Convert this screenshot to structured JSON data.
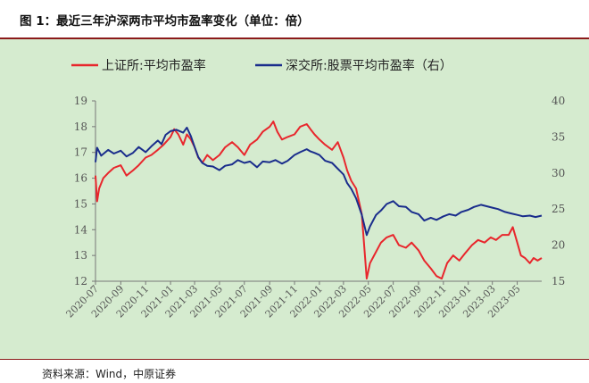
{
  "title": "图 1：最近三年沪深两市平均市盈率变化（单位：倍）",
  "source": "资料来源：Wind，中原证券",
  "chart_data": {
    "type": "line",
    "legend_position": "top",
    "grid": false,
    "x_ticks": [
      "2020-07",
      "2020-09",
      "2020-11",
      "2021-01",
      "2021-03",
      "2021-05",
      "2021-07",
      "2021-09",
      "2021-11",
      "2022-01",
      "2022-03",
      "2022-05",
      "2022-07",
      "2022-09",
      "2022-11",
      "2023-01",
      "2023-03",
      "2023-05"
    ],
    "x_range": [
      "2020-07-01",
      "2023-06-30"
    ],
    "y_left": {
      "min": 12,
      "max": 19,
      "ticks": [
        "12",
        "13",
        "14",
        "15",
        "16",
        "17",
        "18",
        "19"
      ]
    },
    "y_right": {
      "min": 15,
      "max": 40,
      "ticks": [
        "15",
        "20",
        "25",
        "30",
        "35",
        "40"
      ]
    },
    "series": [
      {
        "name": "上证所:平均市盈率",
        "axis": "left",
        "color": "#e8262c",
        "points": [
          [
            "2020-07-01",
            16.1
          ],
          [
            "2020-07-05",
            15.1
          ],
          [
            "2020-07-10",
            15.6
          ],
          [
            "2020-07-20",
            16.0
          ],
          [
            "2020-08-01",
            16.2
          ],
          [
            "2020-08-15",
            16.4
          ],
          [
            "2020-09-01",
            16.5
          ],
          [
            "2020-09-15",
            16.1
          ],
          [
            "2020-10-01",
            16.3
          ],
          [
            "2020-10-15",
            16.5
          ],
          [
            "2020-11-01",
            16.8
          ],
          [
            "2020-11-15",
            16.9
          ],
          [
            "2020-12-01",
            17.1
          ],
          [
            "2020-12-15",
            17.3
          ],
          [
            "2021-01-01",
            17.6
          ],
          [
            "2021-01-10",
            17.9
          ],
          [
            "2021-01-20",
            17.7
          ],
          [
            "2021-02-01",
            17.3
          ],
          [
            "2021-02-10",
            17.7
          ],
          [
            "2021-02-20",
            17.5
          ],
          [
            "2021-03-01",
            17.2
          ],
          [
            "2021-03-10",
            16.8
          ],
          [
            "2021-03-20",
            16.6
          ],
          [
            "2021-04-01",
            16.9
          ],
          [
            "2021-04-15",
            16.7
          ],
          [
            "2021-05-01",
            16.9
          ],
          [
            "2021-05-15",
            17.2
          ],
          [
            "2021-06-01",
            17.4
          ],
          [
            "2021-06-15",
            17.2
          ],
          [
            "2021-07-01",
            16.9
          ],
          [
            "2021-07-15",
            17.3
          ],
          [
            "2021-08-01",
            17.5
          ],
          [
            "2021-08-15",
            17.8
          ],
          [
            "2021-09-01",
            18.0
          ],
          [
            "2021-09-10",
            18.2
          ],
          [
            "2021-09-20",
            17.8
          ],
          [
            "2021-10-01",
            17.5
          ],
          [
            "2021-10-15",
            17.6
          ],
          [
            "2021-11-01",
            17.7
          ],
          [
            "2021-11-15",
            18.0
          ],
          [
            "2021-12-01",
            18.1
          ],
          [
            "2021-12-10",
            17.9
          ],
          [
            "2021-12-20",
            17.7
          ],
          [
            "2022-01-01",
            17.5
          ],
          [
            "2022-01-15",
            17.3
          ],
          [
            "2022-02-01",
            17.1
          ],
          [
            "2022-02-15",
            17.4
          ],
          [
            "2022-03-01",
            16.8
          ],
          [
            "2022-03-10",
            16.3
          ],
          [
            "2022-03-20",
            15.9
          ],
          [
            "2022-04-01",
            15.6
          ],
          [
            "2022-04-15",
            14.6
          ],
          [
            "2022-04-27",
            12.1
          ],
          [
            "2022-05-05",
            12.7
          ],
          [
            "2022-05-15",
            13.0
          ],
          [
            "2022-06-01",
            13.5
          ],
          [
            "2022-06-15",
            13.7
          ],
          [
            "2022-07-01",
            13.8
          ],
          [
            "2022-07-15",
            13.4
          ],
          [
            "2022-08-01",
            13.3
          ],
          [
            "2022-08-15",
            13.5
          ],
          [
            "2022-09-01",
            13.2
          ],
          [
            "2022-09-15",
            12.8
          ],
          [
            "2022-10-01",
            12.5
          ],
          [
            "2022-10-15",
            12.2
          ],
          [
            "2022-10-28",
            12.1
          ],
          [
            "2022-11-10",
            12.7
          ],
          [
            "2022-11-25",
            13.0
          ],
          [
            "2022-12-10",
            12.8
          ],
          [
            "2022-12-25",
            13.1
          ],
          [
            "2023-01-10",
            13.4
          ],
          [
            "2023-01-25",
            13.6
          ],
          [
            "2023-02-10",
            13.5
          ],
          [
            "2023-02-25",
            13.7
          ],
          [
            "2023-03-10",
            13.6
          ],
          [
            "2023-03-25",
            13.8
          ],
          [
            "2023-04-10",
            13.8
          ],
          [
            "2023-04-20",
            14.1
          ],
          [
            "2023-05-01",
            13.5
          ],
          [
            "2023-05-10",
            13.0
          ],
          [
            "2023-05-20",
            12.9
          ],
          [
            "2023-06-01",
            12.7
          ],
          [
            "2023-06-10",
            12.9
          ],
          [
            "2023-06-20",
            12.8
          ],
          [
            "2023-06-30",
            12.9
          ]
        ]
      },
      {
        "name": "深交所:股票平均市盈率（右）",
        "axis": "right",
        "color": "#1a2d8c",
        "points": [
          [
            "2020-07-01",
            31.5
          ],
          [
            "2020-07-05",
            33.5
          ],
          [
            "2020-07-15",
            32.4
          ],
          [
            "2020-08-01",
            33.2
          ],
          [
            "2020-08-15",
            32.7
          ],
          [
            "2020-09-01",
            33.1
          ],
          [
            "2020-09-15",
            32.3
          ],
          [
            "2020-10-01",
            32.8
          ],
          [
            "2020-10-15",
            33.6
          ],
          [
            "2020-11-01",
            32.9
          ],
          [
            "2020-11-15",
            33.7
          ],
          [
            "2020-12-01",
            34.5
          ],
          [
            "2020-12-10",
            34.0
          ],
          [
            "2020-12-20",
            35.3
          ],
          [
            "2021-01-01",
            35.8
          ],
          [
            "2021-01-15",
            36.0
          ],
          [
            "2021-02-01",
            35.6
          ],
          [
            "2021-02-10",
            36.3
          ],
          [
            "2021-02-20",
            35.1
          ],
          [
            "2021-03-01",
            33.6
          ],
          [
            "2021-03-10",
            32.2
          ],
          [
            "2021-03-20",
            31.4
          ],
          [
            "2021-04-01",
            31.0
          ],
          [
            "2021-04-15",
            30.9
          ],
          [
            "2021-05-01",
            30.4
          ],
          [
            "2021-05-15",
            31.0
          ],
          [
            "2021-06-01",
            31.2
          ],
          [
            "2021-06-15",
            31.8
          ],
          [
            "2021-07-01",
            31.4
          ],
          [
            "2021-07-15",
            31.6
          ],
          [
            "2021-08-01",
            30.8
          ],
          [
            "2021-08-15",
            31.6
          ],
          [
            "2021-09-01",
            31.5
          ],
          [
            "2021-09-15",
            31.8
          ],
          [
            "2021-10-01",
            31.3
          ],
          [
            "2021-10-15",
            31.7
          ],
          [
            "2021-11-01",
            32.5
          ],
          [
            "2021-11-15",
            32.9
          ],
          [
            "2021-12-01",
            33.3
          ],
          [
            "2021-12-10",
            33.0
          ],
          [
            "2021-12-20",
            32.8
          ],
          [
            "2022-01-01",
            32.5
          ],
          [
            "2022-01-15",
            31.7
          ],
          [
            "2022-02-01",
            31.4
          ],
          [
            "2022-02-15",
            30.6
          ],
          [
            "2022-03-01",
            29.8
          ],
          [
            "2022-03-10",
            28.6
          ],
          [
            "2022-03-20",
            27.8
          ],
          [
            "2022-04-01",
            26.5
          ],
          [
            "2022-04-15",
            24.2
          ],
          [
            "2022-04-27",
            21.4
          ],
          [
            "2022-05-05",
            22.6
          ],
          [
            "2022-05-20",
            24.2
          ],
          [
            "2022-06-01",
            24.8
          ],
          [
            "2022-06-15",
            25.7
          ],
          [
            "2022-07-01",
            26.1
          ],
          [
            "2022-07-15",
            25.4
          ],
          [
            "2022-08-01",
            25.3
          ],
          [
            "2022-08-15",
            24.6
          ],
          [
            "2022-09-01",
            24.3
          ],
          [
            "2022-09-15",
            23.4
          ],
          [
            "2022-10-01",
            23.8
          ],
          [
            "2022-10-15",
            23.5
          ],
          [
            "2022-11-01",
            24.0
          ],
          [
            "2022-11-15",
            24.3
          ],
          [
            "2022-12-01",
            24.1
          ],
          [
            "2022-12-15",
            24.6
          ],
          [
            "2023-01-01",
            24.9
          ],
          [
            "2023-01-15",
            25.3
          ],
          [
            "2023-02-01",
            25.6
          ],
          [
            "2023-02-15",
            25.4
          ],
          [
            "2023-03-01",
            25.2
          ],
          [
            "2023-03-15",
            25.0
          ],
          [
            "2023-04-01",
            24.6
          ],
          [
            "2023-04-15",
            24.4
          ],
          [
            "2023-05-01",
            24.2
          ],
          [
            "2023-05-15",
            24.0
          ],
          [
            "2023-06-01",
            24.1
          ],
          [
            "2023-06-15",
            23.9
          ],
          [
            "2023-06-30",
            24.1
          ]
        ]
      }
    ]
  }
}
